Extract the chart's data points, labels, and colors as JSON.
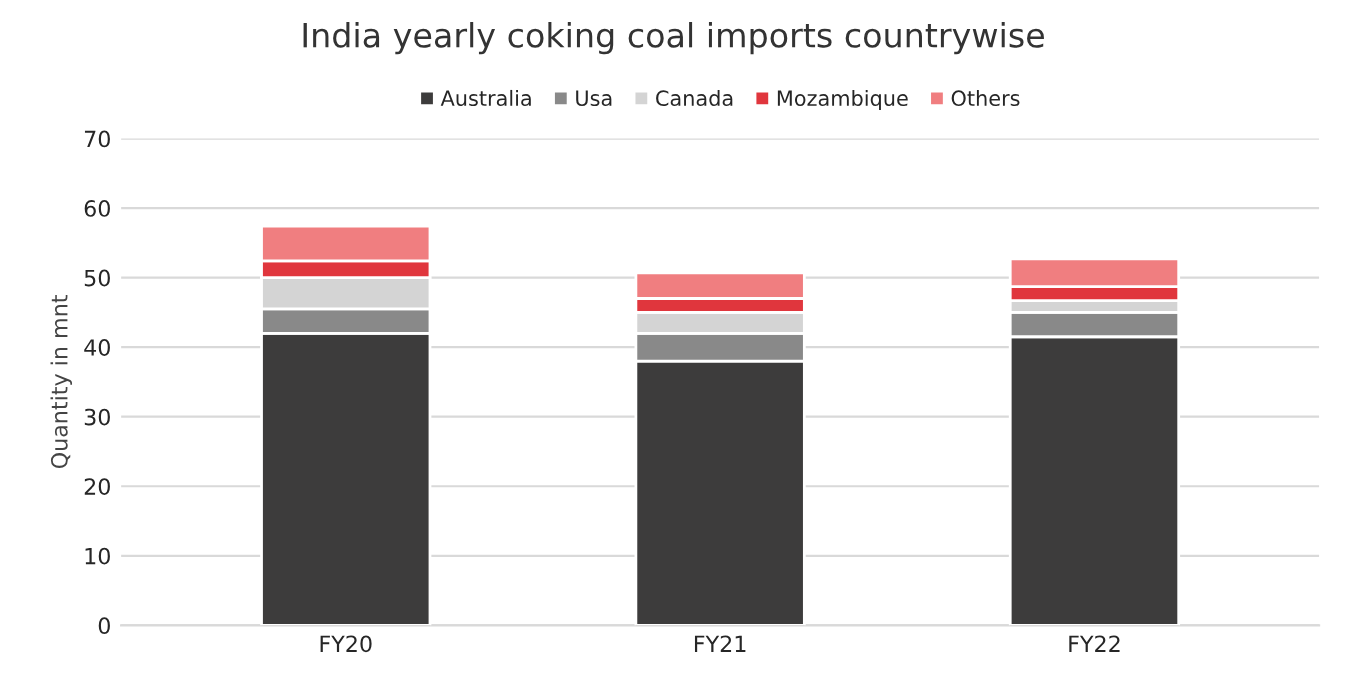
{
  "chart_data": {
    "type": "bar",
    "title": "India yearly coking coal imports countrywise",
    "ylabel": "Quantity in mnt",
    "categories": [
      "FY20",
      "FY21",
      "FY22"
    ],
    "stacked": true,
    "series": [
      {
        "name": "Australia",
        "color": "#3d3c3c",
        "values": [
          42,
          38,
          41.5
        ]
      },
      {
        "name": "Usa",
        "color": "#898989",
        "values": [
          3.5,
          4,
          3.5
        ]
      },
      {
        "name": "Canada",
        "color": "#d4d4d4",
        "values": [
          4.5,
          3,
          1.7
        ]
      },
      {
        "name": "Mozambique",
        "color": "#e0363d",
        "values": [
          2.4,
          2,
          2
        ]
      },
      {
        "name": "Others",
        "color": "#f07e80",
        "values": [
          5,
          3.7,
          4
        ]
      }
    ],
    "ylim": [
      0,
      70
    ],
    "yticks": [
      0,
      10,
      20,
      30,
      40,
      50,
      60,
      70
    ],
    "grid": "y",
    "legend": "top"
  }
}
